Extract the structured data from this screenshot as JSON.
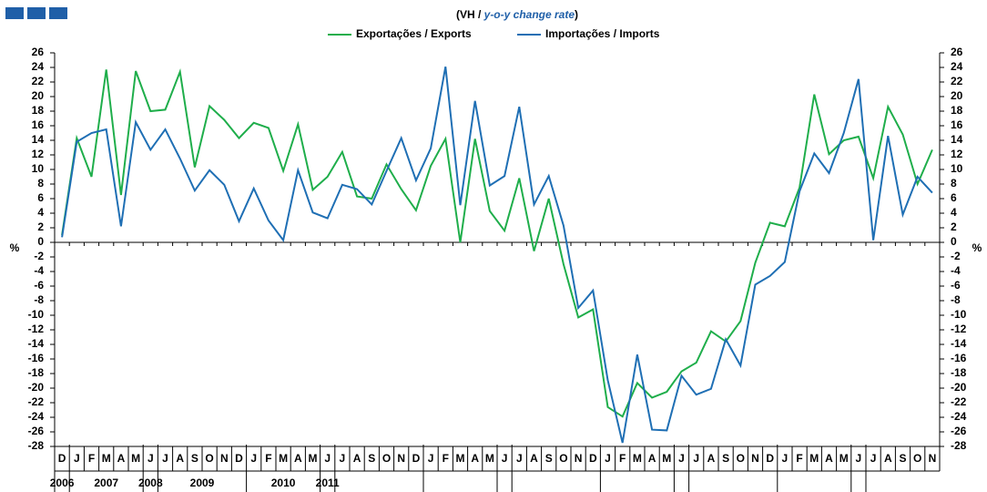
{
  "chart_data": {
    "type": "line",
    "title": {
      "prefix": "(VH / ",
      "emphasis": "y-o-y change rate",
      "suffix": ")"
    },
    "y_label": "%",
    "categories": [
      "D",
      "J",
      "F",
      "M",
      "A",
      "M",
      "J",
      "J",
      "A",
      "S",
      "O",
      "N",
      "D",
      "J",
      "F",
      "M",
      "A",
      "M",
      "J",
      "J",
      "A",
      "S",
      "O",
      "N",
      "D",
      "J",
      "F",
      "M",
      "A",
      "M",
      "J",
      "J",
      "A",
      "S",
      "O",
      "N",
      "D",
      "J",
      "F",
      "M",
      "A",
      "M",
      "J",
      "J",
      "A",
      "S",
      "O",
      "N",
      "D",
      "J",
      "F",
      "M",
      "A",
      "M",
      "J",
      "J",
      "A",
      "S",
      "O",
      "N"
    ],
    "years": [
      "2006",
      "2007",
      "2008",
      "2009",
      "2010",
      "2011"
    ],
    "series": [
      {
        "name": "Exportações / Exports",
        "color": "#1fae4b",
        "values": [
          1.0,
          14.3,
          9.0,
          23.7,
          6.5,
          23.5,
          18.0,
          18.2,
          23.4,
          10.3,
          18.7,
          16.8,
          14.3,
          16.4,
          15.7,
          9.8,
          16.2,
          7.2,
          9.0,
          12.4,
          6.3,
          6.0,
          10.7,
          7.3,
          4.4,
          10.5,
          14.2,
          0.0,
          14.2,
          4.3,
          1.6,
          8.8,
          -1.2,
          6.0,
          -3.0,
          -10.3,
          -9.2,
          -22.6,
          -23.9,
          -19.3,
          -21.3,
          -20.5,
          -17.7,
          -16.5,
          -12.2,
          -13.6,
          -10.8,
          -2.8,
          2.7,
          2.2,
          7.5,
          20.3,
          12.1,
          14.0,
          14.5,
          8.8,
          18.6,
          14.8,
          8.0,
          12.7
        ]
      },
      {
        "name": "Importações / Imports",
        "color": "#1f6fb4",
        "values": [
          0.7,
          13.8,
          15.0,
          15.5,
          2.2,
          16.5,
          12.7,
          15.5,
          11.5,
          7.1,
          9.9,
          7.9,
          2.9,
          7.4,
          3.0,
          0.3,
          9.9,
          4.1,
          3.3,
          7.9,
          7.3,
          5.2,
          9.8,
          14.3,
          8.5,
          12.9,
          24.1,
          5.1,
          19.4,
          7.8,
          9.1,
          18.6,
          5.2,
          9.1,
          2.3,
          -9.0,
          -6.6,
          -18.9,
          -27.5,
          -15.4,
          -25.7,
          -25.8,
          -18.3,
          -20.9,
          -20.1,
          -13.3,
          -16.9,
          -5.8,
          -4.6,
          -2.7,
          7.0,
          12.2,
          9.5,
          15.0,
          22.4,
          0.3,
          14.6,
          3.8,
          9.0,
          6.8
        ]
      }
    ],
    "ylim": [
      -28,
      26
    ],
    "yticks": [
      -28,
      -26,
      -24,
      -22,
      -20,
      -18,
      -16,
      -14,
      -12,
      -10,
      -8,
      -6,
      -4,
      -2,
      0,
      2,
      4,
      6,
      8,
      10,
      12,
      14,
      16,
      18,
      20,
      22,
      24,
      26
    ],
    "legend": "top"
  }
}
